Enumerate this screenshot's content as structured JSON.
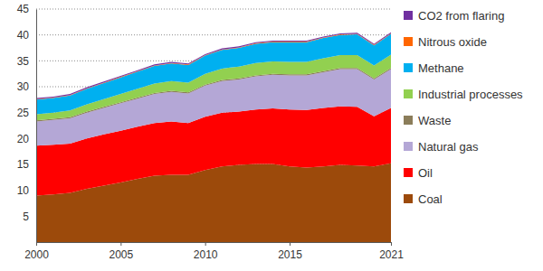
{
  "chart_data": {
    "type": "area",
    "stacked": true,
    "grid": true,
    "legend": "right",
    "x": [
      2000,
      2001,
      2002,
      2003,
      2004,
      2005,
      2006,
      2007,
      2008,
      2009,
      2010,
      2011,
      2012,
      2013,
      2014,
      2015,
      2016,
      2017,
      2018,
      2019,
      2020,
      2021
    ],
    "xlim": [
      2000,
      2021
    ],
    "xticks": [
      2000,
      2005,
      2010,
      2015,
      2021
    ],
    "ylim": [
      0,
      45
    ],
    "yticks": [
      5,
      10,
      15,
      20,
      25,
      30,
      35,
      40,
      45
    ],
    "series": [
      {
        "name": "Coal",
        "color": "#9c4a0b",
        "values": [
          9.0,
          9.2,
          9.5,
          10.3,
          10.9,
          11.5,
          12.2,
          12.8,
          13.0,
          13.0,
          13.9,
          14.6,
          14.9,
          15.1,
          15.1,
          14.6,
          14.4,
          14.6,
          14.9,
          14.8,
          14.6,
          15.2
        ]
      },
      {
        "name": "Oil",
        "color": "#ff0000",
        "values": [
          9.6,
          9.6,
          9.5,
          9.7,
          9.9,
          10.0,
          10.1,
          10.2,
          10.3,
          10.0,
          10.3,
          10.4,
          10.3,
          10.5,
          10.7,
          11.0,
          11.1,
          11.3,
          11.3,
          11.3,
          9.7,
          10.7
        ]
      },
      {
        "name": "Natural gas",
        "color": "#b4a7d6",
        "values": [
          4.7,
          4.8,
          4.9,
          5.0,
          5.1,
          5.3,
          5.4,
          5.6,
          5.7,
          5.7,
          6.0,
          6.1,
          6.2,
          6.4,
          6.5,
          6.6,
          6.7,
          6.9,
          7.2,
          7.3,
          7.1,
          7.5
        ]
      },
      {
        "name": "Waste",
        "color": "#8b7d5a",
        "values": [
          0.2,
          0.2,
          0.2,
          0.2,
          0.2,
          0.2,
          0.2,
          0.2,
          0.2,
          0.2,
          0.2,
          0.2,
          0.2,
          0.2,
          0.2,
          0.2,
          0.2,
          0.2,
          0.2,
          0.2,
          0.2,
          0.2
        ]
      },
      {
        "name": "Industrial processes",
        "color": "#92d050",
        "values": [
          1.2,
          1.2,
          1.3,
          1.4,
          1.5,
          1.6,
          1.7,
          1.8,
          1.9,
          1.9,
          2.1,
          2.2,
          2.3,
          2.4,
          2.4,
          2.4,
          2.4,
          2.5,
          2.5,
          2.5,
          2.5,
          2.6
        ]
      },
      {
        "name": "Methane",
        "color": "#00b0f0",
        "values": [
          2.8,
          2.8,
          2.9,
          3.0,
          3.1,
          3.2,
          3.3,
          3.4,
          3.4,
          3.4,
          3.5,
          3.6,
          3.6,
          3.7,
          3.7,
          3.8,
          3.8,
          3.9,
          3.9,
          4.0,
          3.9,
          4.0
        ]
      },
      {
        "name": "Nitrous oxide",
        "color": "#ff6600",
        "values": [
          0.1,
          0.1,
          0.1,
          0.1,
          0.1,
          0.1,
          0.1,
          0.1,
          0.1,
          0.1,
          0.1,
          0.1,
          0.1,
          0.1,
          0.1,
          0.1,
          0.1,
          0.1,
          0.1,
          0.1,
          0.1,
          0.1
        ]
      },
      {
        "name": "CO2 from flaring",
        "color": "#7030a0",
        "values": [
          0.2,
          0.2,
          0.2,
          0.2,
          0.2,
          0.2,
          0.2,
          0.2,
          0.2,
          0.2,
          0.2,
          0.2,
          0.2,
          0.2,
          0.2,
          0.2,
          0.2,
          0.2,
          0.2,
          0.2,
          0.2,
          0.2
        ]
      }
    ]
  }
}
